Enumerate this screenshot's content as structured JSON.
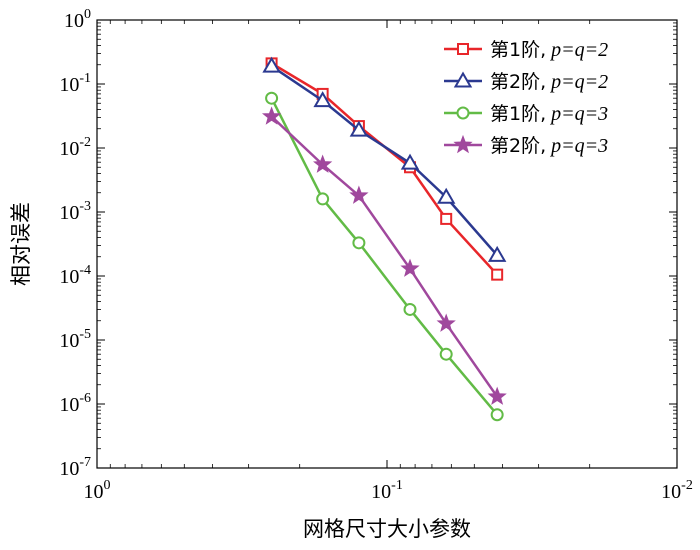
{
  "chart_data": {
    "type": "line",
    "xscale": "log",
    "yscale": "log",
    "x_reversed": true,
    "xlim": [
      1,
      0.01
    ],
    "ylim": [
      1e-07,
      1
    ],
    "xlabel": "网格尺寸大小参数",
    "ylabel": "相对误差",
    "x_ticks": [
      {
        "value": 1,
        "mantissa": "10",
        "exp": "0"
      },
      {
        "value": 0.1,
        "mantissa": "10",
        "exp": "-1"
      },
      {
        "value": 0.01,
        "mantissa": "10",
        "exp": "-2"
      }
    ],
    "y_ticks": [
      {
        "value": 1,
        "mantissa": "10",
        "exp": "0"
      },
      {
        "value": 0.1,
        "mantissa": "10",
        "exp": "-1"
      },
      {
        "value": 0.01,
        "mantissa": "10",
        "exp": "-2"
      },
      {
        "value": 0.001,
        "mantissa": "10",
        "exp": "-3"
      },
      {
        "value": 0.0001,
        "mantissa": "10",
        "exp": "-4"
      },
      {
        "value": 1e-05,
        "mantissa": "10",
        "exp": "-5"
      },
      {
        "value": 1e-06,
        "mantissa": "10",
        "exp": "-6"
      },
      {
        "value": 1e-07,
        "mantissa": "10",
        "exp": "-7"
      }
    ],
    "legend_position": "top-right",
    "series": [
      {
        "name": "第1阶, p=q=2",
        "legend_prefix": "第1阶,",
        "legend_math": "p=q=2",
        "color": "#e8262a",
        "marker": "square",
        "x": [
          0.25,
          0.1667,
          0.125,
          0.0833,
          0.0625,
          0.0417
        ],
        "y": [
          0.21,
          0.07,
          0.022,
          0.005,
          0.00078,
          0.000105
        ]
      },
      {
        "name": "第2阶, p=q=2",
        "legend_prefix": "第2阶,",
        "legend_math": "p=q=2",
        "color": "#2b3990",
        "marker": "triangle",
        "x": [
          0.25,
          0.1667,
          0.125,
          0.0833,
          0.0625,
          0.0417
        ],
        "y": [
          0.19,
          0.055,
          0.019,
          0.0058,
          0.0017,
          0.00021
        ]
      },
      {
        "name": "第1阶, p=q=3",
        "legend_prefix": "第1阶,",
        "legend_math": "p=q=3",
        "color": "#62bb46",
        "marker": "circle",
        "x": [
          0.25,
          0.1667,
          0.125,
          0.0833,
          0.0625,
          0.0417
        ],
        "y": [
          0.06,
          0.0016,
          0.00033,
          3e-05,
          6e-06,
          6.8e-07
        ]
      },
      {
        "name": "第2阶, p=q=3",
        "legend_prefix": "第2阶,",
        "legend_math": "p=q=3",
        "color": "#a0489d",
        "marker": "star",
        "x": [
          0.25,
          0.1667,
          0.125,
          0.0833,
          0.0625,
          0.0417
        ],
        "y": [
          0.031,
          0.0055,
          0.0018,
          0.00013,
          1.8e-05,
          1.3e-06
        ]
      }
    ]
  }
}
